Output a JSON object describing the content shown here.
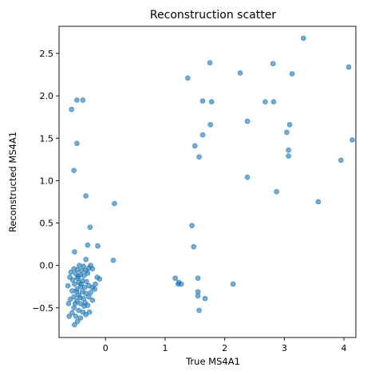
{
  "chart_data": {
    "type": "scatter",
    "title": "Reconstruction scatter",
    "xlabel": "True MS4A1",
    "ylabel": "Reconstructed MS4A1",
    "xlim": [
      -0.78,
      4.2
    ],
    "ylim": [
      -0.85,
      2.82
    ],
    "xticks": [
      0,
      1,
      2,
      3,
      4
    ],
    "yticks": [
      -0.5,
      0.0,
      0.5,
      1.0,
      1.5,
      2.0,
      2.5
    ],
    "xtick_labels": [
      "0",
      "1",
      "2",
      "3",
      "4"
    ],
    "ytick_labels": [
      "−0.5",
      "0.0",
      "0.5",
      "1.0",
      "1.5",
      "2.0",
      "2.5"
    ],
    "grid": false,
    "marker_color": "#1f77b4",
    "points": [
      {
        "x": 3.32,
        "y": 2.68
      },
      {
        "x": 1.75,
        "y": 2.39
      },
      {
        "x": 2.81,
        "y": 2.38
      },
      {
        "x": 4.08,
        "y": 2.34
      },
      {
        "x": 2.26,
        "y": 2.27
      },
      {
        "x": 3.13,
        "y": 2.26
      },
      {
        "x": 1.38,
        "y": 2.21
      },
      {
        "x": 1.63,
        "y": 1.94
      },
      {
        "x": 1.78,
        "y": 1.93
      },
      {
        "x": 2.68,
        "y": 1.93
      },
      {
        "x": 2.82,
        "y": 1.93
      },
      {
        "x": 2.38,
        "y": 1.7
      },
      {
        "x": 1.76,
        "y": 1.66
      },
      {
        "x": 3.09,
        "y": 1.66
      },
      {
        "x": 3.04,
        "y": 1.57
      },
      {
        "x": 1.63,
        "y": 1.54
      },
      {
        "x": 4.14,
        "y": 1.48
      },
      {
        "x": 1.5,
        "y": 1.41
      },
      {
        "x": 3.07,
        "y": 1.36
      },
      {
        "x": 1.57,
        "y": 1.28
      },
      {
        "x": 3.07,
        "y": 1.29
      },
      {
        "x": 3.95,
        "y": 1.24
      },
      {
        "x": 2.38,
        "y": 1.04
      },
      {
        "x": 2.87,
        "y": 0.87
      },
      {
        "x": 3.57,
        "y": 0.75
      },
      {
        "x": 1.45,
        "y": 0.47
      },
      {
        "x": 1.48,
        "y": 0.22
      },
      {
        "x": 1.17,
        "y": -0.15
      },
      {
        "x": 1.23,
        "y": -0.2
      },
      {
        "x": 1.27,
        "y": -0.22
      },
      {
        "x": 1.22,
        "y": -0.22
      },
      {
        "x": 1.55,
        "y": -0.15
      },
      {
        "x": 1.55,
        "y": -0.31
      },
      {
        "x": 1.55,
        "y": -0.36
      },
      {
        "x": 1.67,
        "y": -0.39
      },
      {
        "x": 1.57,
        "y": -0.53
      },
      {
        "x": 2.14,
        "y": -0.22
      },
      {
        "x": -0.48,
        "y": 1.95
      },
      {
        "x": -0.38,
        "y": 1.95
      },
      {
        "x": -0.57,
        "y": 1.84
      },
      {
        "x": -0.48,
        "y": 1.44
      },
      {
        "x": -0.53,
        "y": 1.12
      },
      {
        "x": -0.33,
        "y": 0.82
      },
      {
        "x": 0.15,
        "y": 0.73
      },
      {
        "x": -0.26,
        "y": 0.45
      },
      {
        "x": -0.3,
        "y": 0.24
      },
      {
        "x": -0.13,
        "y": 0.23
      },
      {
        "x": -0.52,
        "y": 0.16
      },
      {
        "x": 0.13,
        "y": 0.06
      },
      {
        "x": -0.33,
        "y": 0.07
      },
      {
        "x": -0.25,
        "y": 0.0
      },
      {
        "x": -0.22,
        "y": -0.04
      },
      {
        "x": -0.28,
        "y": -0.03
      },
      {
        "x": -0.53,
        "y": -0.04
      },
      {
        "x": -0.47,
        "y": -0.05
      },
      {
        "x": -0.4,
        "y": -0.06
      },
      {
        "x": -0.33,
        "y": -0.06
      },
      {
        "x": -0.3,
        "y": -0.09
      },
      {
        "x": -0.5,
        "y": -0.1
      },
      {
        "x": -0.42,
        "y": -0.11
      },
      {
        "x": -0.36,
        "y": -0.12
      },
      {
        "x": -0.6,
        "y": -0.14
      },
      {
        "x": -0.47,
        "y": -0.15
      },
      {
        "x": -0.55,
        "y": -0.17
      },
      {
        "x": -0.39,
        "y": -0.18
      },
      {
        "x": -0.45,
        "y": -0.2
      },
      {
        "x": -0.32,
        "y": -0.19
      },
      {
        "x": -0.14,
        "y": -0.14
      },
      {
        "x": -0.1,
        "y": -0.16
      },
      {
        "x": -0.17,
        "y": -0.22
      },
      {
        "x": -0.52,
        "y": -0.22
      },
      {
        "x": -0.63,
        "y": -0.24
      },
      {
        "x": -0.42,
        "y": -0.25
      },
      {
        "x": -0.35,
        "y": -0.26
      },
      {
        "x": -0.28,
        "y": -0.24
      },
      {
        "x": -0.22,
        "y": -0.26
      },
      {
        "x": -0.48,
        "y": -0.28
      },
      {
        "x": -0.56,
        "y": -0.3
      },
      {
        "x": -0.39,
        "y": -0.31
      },
      {
        "x": -0.33,
        "y": -0.33
      },
      {
        "x": -0.45,
        "y": -0.35
      },
      {
        "x": -0.53,
        "y": -0.37
      },
      {
        "x": -0.59,
        "y": -0.4
      },
      {
        "x": -0.37,
        "y": -0.39
      },
      {
        "x": -0.28,
        "y": -0.37
      },
      {
        "x": -0.22,
        "y": -0.41
      },
      {
        "x": -0.48,
        "y": -0.42
      },
      {
        "x": -0.42,
        "y": -0.45
      },
      {
        "x": -0.62,
        "y": -0.45
      },
      {
        "x": -0.36,
        "y": -0.48
      },
      {
        "x": -0.3,
        "y": -0.47
      },
      {
        "x": -0.53,
        "y": -0.5
      },
      {
        "x": -0.45,
        "y": -0.53
      },
      {
        "x": -0.38,
        "y": -0.55
      },
      {
        "x": -0.61,
        "y": -0.6
      },
      {
        "x": -0.5,
        "y": -0.6
      },
      {
        "x": -0.42,
        "y": -0.62
      },
      {
        "x": -0.47,
        "y": -0.66
      },
      {
        "x": -0.52,
        "y": -0.7
      },
      {
        "x": -0.56,
        "y": -0.56
      },
      {
        "x": -0.33,
        "y": -0.58
      },
      {
        "x": -0.27,
        "y": -0.55
      },
      {
        "x": -0.25,
        "y": -0.32
      },
      {
        "x": -0.58,
        "y": -0.08
      },
      {
        "x": -0.44,
        "y": 0.0
      },
      {
        "x": -0.37,
        "y": -0.01
      },
      {
        "x": -0.49,
        "y": -0.31
      },
      {
        "x": -0.41,
        "y": -0.22
      },
      {
        "x": -0.46,
        "y": -0.13
      },
      {
        "x": -0.34,
        "y": -0.44
      },
      {
        "x": -0.18,
        "y": -0.28
      },
      {
        "x": -0.43,
        "y": -0.38
      },
      {
        "x": -0.51,
        "y": -0.45
      }
    ]
  }
}
